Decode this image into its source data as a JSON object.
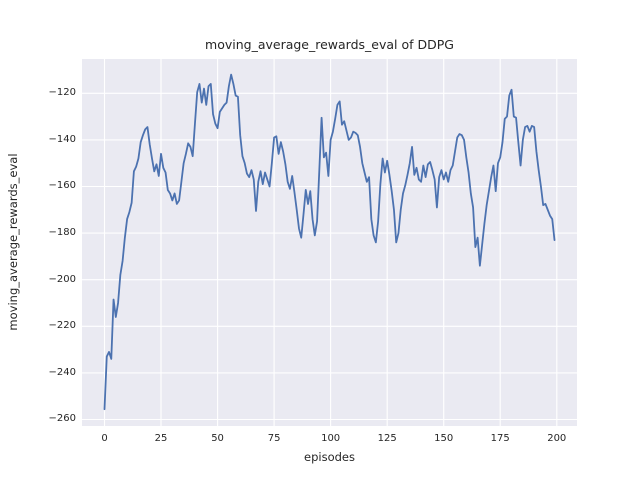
{
  "chart_data": {
    "type": "line",
    "title": "moving_average_rewards_eval of DDPG",
    "xlabel": "episodes",
    "ylabel": "moving_average_rewards_eval",
    "grid": true,
    "legend": false,
    "background": "#EAEAF2",
    "grid_color": "#FFFFFF",
    "text_color": "#262626",
    "xlim": [
      -9.95,
      208.95
    ],
    "ylim": [
      -262.8,
      -105.3
    ],
    "xticks": [
      0,
      25,
      50,
      75,
      100,
      125,
      150,
      175,
      200
    ],
    "yticks": [
      -260,
      -240,
      -220,
      -200,
      -180,
      -160,
      -140,
      -120
    ],
    "x_start": 0,
    "x_step": 1,
    "series": [
      {
        "name": "moving_average_rewards_eval",
        "color": "#4C72B0",
        "values": [
          -255.6,
          -233,
          -231,
          -234,
          -208.5,
          -216,
          -210,
          -198,
          -192,
          -182,
          -174,
          -171,
          -167,
          -153.5,
          -151.5,
          -148,
          -141,
          -138,
          -135.5,
          -134.5,
          -142,
          -148,
          -153.5,
          -150.5,
          -155.5,
          -146,
          -152,
          -154,
          -161.5,
          -163,
          -166,
          -163,
          -167.5,
          -166,
          -158,
          -150,
          -146,
          -141.5,
          -143,
          -147,
          -133,
          -119.5,
          -116,
          -124,
          -118,
          -125,
          -117,
          -116,
          -129,
          -133,
          -135,
          -128,
          -126.5,
          -125,
          -124,
          -117,
          -112,
          -116,
          -121,
          -121.5,
          -138,
          -147,
          -150,
          -154.5,
          -156,
          -153,
          -157,
          -170.5,
          -158,
          -153.5,
          -159,
          -154,
          -157,
          -160,
          -150,
          -139,
          -138.5,
          -146,
          -141,
          -145,
          -150.5,
          -158,
          -161,
          -155.5,
          -162.5,
          -170,
          -178,
          -182,
          -172,
          -161.5,
          -167.5,
          -162,
          -174,
          -181,
          -175,
          -153,
          -130.5,
          -147.5,
          -145.5,
          -155.5,
          -140,
          -136.5,
          -131,
          -125,
          -123.5,
          -133.5,
          -132,
          -136,
          -140,
          -139,
          -136.5,
          -137,
          -138,
          -143,
          -150,
          -154,
          -158,
          -156,
          -174,
          -181,
          -184,
          -175,
          -159,
          -148,
          -154,
          -149,
          -155,
          -162,
          -170,
          -184,
          -180,
          -170,
          -163,
          -159.5,
          -155,
          -150,
          -143,
          -155,
          -152,
          -157,
          -158,
          -151,
          -156,
          -150.5,
          -149.5,
          -153,
          -157,
          -169,
          -156,
          -153,
          -157,
          -154,
          -158,
          -153,
          -151,
          -145,
          -139,
          -137.5,
          -138,
          -140,
          -147.5,
          -154,
          -163,
          -169,
          -186,
          -182,
          -194,
          -185,
          -176,
          -168,
          -162,
          -156,
          -151,
          -162,
          -150,
          -147.5,
          -141,
          -131,
          -130,
          -121,
          -118.5,
          -130,
          -130.5,
          -141,
          -151,
          -140,
          -134.5,
          -134,
          -136.5,
          -134,
          -134.5,
          -145,
          -153,
          -160,
          -168,
          -167.5,
          -170,
          -172.5,
          -174,
          -183
        ]
      }
    ]
  }
}
